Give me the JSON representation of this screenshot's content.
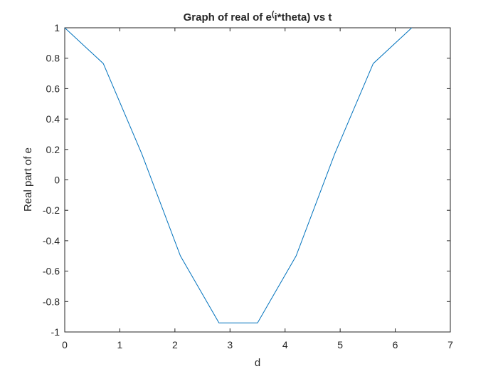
{
  "chart_data": {
    "type": "line",
    "title": "Graph of real of e",
    "title_superscript": "(",
    "title_rest": "i*theta) vs t",
    "xlabel": "d",
    "ylabel": "Real part of e",
    "xlim": [
      0,
      7
    ],
    "ylim": [
      -1,
      1
    ],
    "x_ticks": [
      "0",
      "1",
      "2",
      "3",
      "4",
      "5",
      "6",
      "7"
    ],
    "y_ticks": [
      "1",
      "0.8",
      "0.6",
      "0.4",
      "0.2",
      "0",
      "-0.2",
      "-0.4",
      "-0.6",
      "-0.8",
      "-1"
    ],
    "grid": false,
    "series": [
      {
        "color": "#0072BD",
        "x": [
          0,
          0.7,
          1.4,
          2.1,
          2.8,
          3.5,
          4.2,
          4.9,
          5.6,
          6.3
        ],
        "y": [
          1,
          0.765,
          0.17,
          -0.5,
          -0.94,
          -0.94,
          -0.5,
          0.17,
          0.765,
          1
        ]
      }
    ]
  }
}
